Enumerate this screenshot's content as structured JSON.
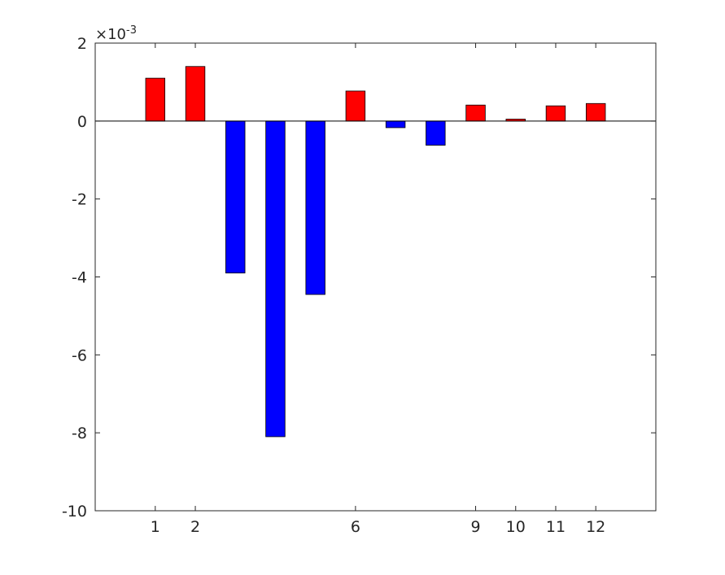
{
  "chart_data": {
    "type": "bar",
    "categories": [
      "1",
      "2",
      "3",
      "4",
      "5",
      "6",
      "7",
      "8",
      "9",
      "10",
      "11",
      "12"
    ],
    "values": [
      0.0011,
      0.0014,
      -0.0039,
      -0.0081,
      -0.00445,
      0.00077,
      -0.00017,
      -0.00062,
      0.00041,
      5e-05,
      0.00039,
      0.00045
    ],
    "x_tick_labels": [
      {
        "category": "1",
        "label": "1"
      },
      {
        "category": "2",
        "label": "2"
      },
      {
        "category": "6",
        "label": "6"
      },
      {
        "category": "9",
        "label": "9"
      },
      {
        "category": "10",
        "label": "10"
      },
      {
        "category": "11",
        "label": "11"
      },
      {
        "category": "12",
        "label": "12"
      }
    ],
    "xlim": [
      -0.5,
      13.5
    ],
    "ylim": [
      -0.01,
      0.002
    ],
    "y_ticks": [
      0.002,
      0,
      -0.002,
      -0.004,
      -0.006,
      -0.008,
      -0.01
    ],
    "y_tick_labels": [
      "2",
      "0",
      "-2",
      "-4",
      "-6",
      "-8",
      "-10"
    ],
    "y_exponent_label": "×10",
    "y_exponent_power": "-3",
    "colors": {
      "positive": "#ff0000",
      "negative": "#0000ff",
      "axis": "#262626",
      "bar_edge": "#000000"
    },
    "grid": false,
    "title": "",
    "xlabel": "",
    "ylabel": ""
  }
}
